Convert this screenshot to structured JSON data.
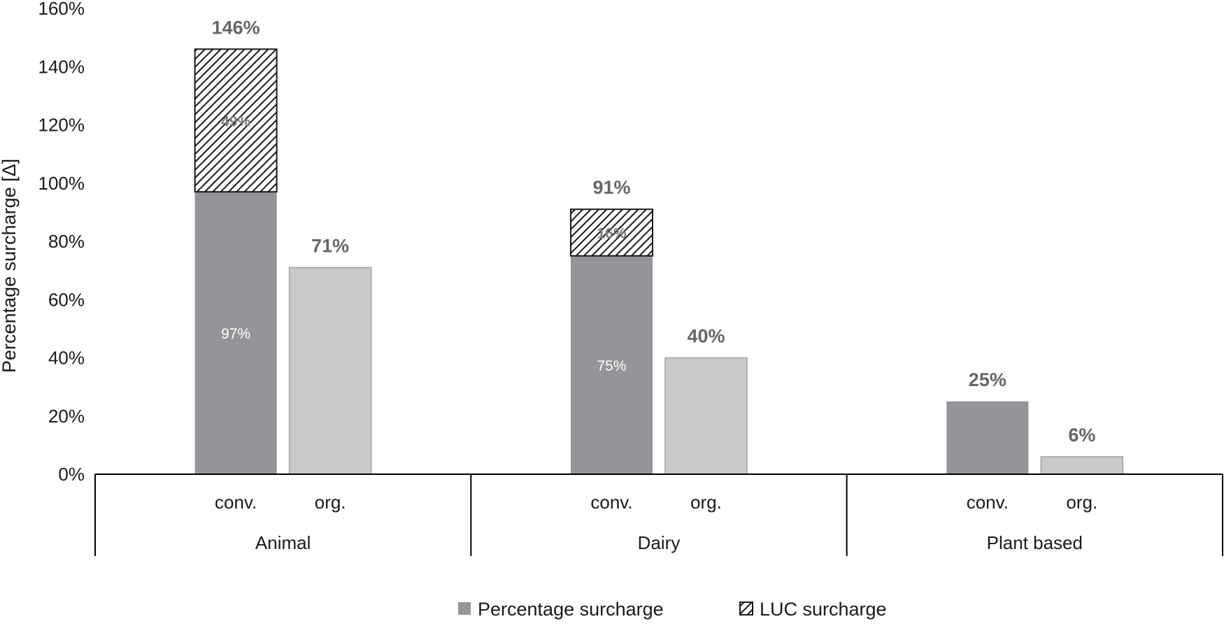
{
  "chart_data": {
    "type": "bar",
    "stacked": true,
    "ylabel": "Percentage surcharge [Δ]",
    "ylim": [
      0,
      160
    ],
    "yticks": [
      0,
      20,
      40,
      60,
      80,
      100,
      120,
      140,
      160
    ],
    "ytick_suffix": "%",
    "groups": [
      {
        "name": "Animal",
        "bars": [
          {
            "label": "conv.",
            "type": "conv",
            "base": 97,
            "luc": 49,
            "total_label": "146%",
            "base_label": "97%",
            "luc_label": "49%"
          },
          {
            "label": "org.",
            "type": "org",
            "base": 71,
            "luc": 0,
            "total_label": "71%",
            "base_label": "",
            "luc_label": ""
          }
        ]
      },
      {
        "name": "Dairy",
        "bars": [
          {
            "label": "conv.",
            "type": "conv",
            "base": 75,
            "luc": 16,
            "total_label": "91%",
            "base_label": "75%",
            "luc_label": "16%"
          },
          {
            "label": "org.",
            "type": "org",
            "base": 40,
            "luc": 0,
            "total_label": "40%",
            "base_label": "",
            "luc_label": ""
          }
        ]
      },
      {
        "name": "Plant based",
        "bars": [
          {
            "label": "conv.",
            "type": "conv",
            "base": 25,
            "luc": 0,
            "total_label": "25%",
            "base_label": "",
            "luc_label": ""
          },
          {
            "label": "org.",
            "type": "org",
            "base": 6,
            "luc": 0,
            "total_label": "6%",
            "base_label": "",
            "luc_label": ""
          }
        ]
      }
    ],
    "legend": [
      {
        "name": "Percentage surcharge",
        "style": "solid"
      },
      {
        "name": "LUC surcharge",
        "style": "hatch"
      }
    ],
    "colors": {
      "conv": "#939598",
      "org": "#c8c9cb",
      "org_border": "#a0a1a3",
      "axis": "#000000",
      "total_label": "#666666"
    }
  }
}
